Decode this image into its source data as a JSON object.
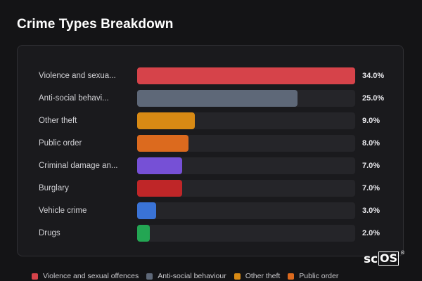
{
  "title": "Crime Types Breakdown",
  "chart_data": {
    "type": "bar",
    "orientation": "horizontal",
    "title": "Crime Types Breakdown",
    "xlim": [
      0,
      34
    ],
    "categories": [
      "Violence and sexua...",
      "Anti-social behavi...",
      "Other theft",
      "Public order",
      "Criminal damage an...",
      "Burglary",
      "Vehicle crime",
      "Drugs"
    ],
    "values": [
      34.0,
      25.0,
      9.0,
      8.0,
      7.0,
      7.0,
      3.0,
      2.0
    ],
    "value_labels": [
      "34.0%",
      "25.0%",
      "9.0%",
      "8.0%",
      "7.0%",
      "7.0%",
      "3.0%",
      "2.0%"
    ],
    "colors": [
      "#d6434a",
      "#5e6878",
      "#d88a14",
      "#dc6a1e",
      "#7650d6",
      "#bf2628",
      "#3a73d6",
      "#23a653"
    ],
    "legend": {
      "placement": "bottom",
      "entries": [
        {
          "label": "Violence and sexual offences",
          "color": "#d6434a"
        },
        {
          "label": "Anti-social behaviour",
          "color": "#5e6878"
        },
        {
          "label": "Other theft",
          "color": "#d88a14"
        },
        {
          "label": "Public order",
          "color": "#dc6a1e"
        }
      ]
    }
  },
  "logo": {
    "text_left": "sc",
    "text_box": "OS",
    "mark": "®"
  }
}
